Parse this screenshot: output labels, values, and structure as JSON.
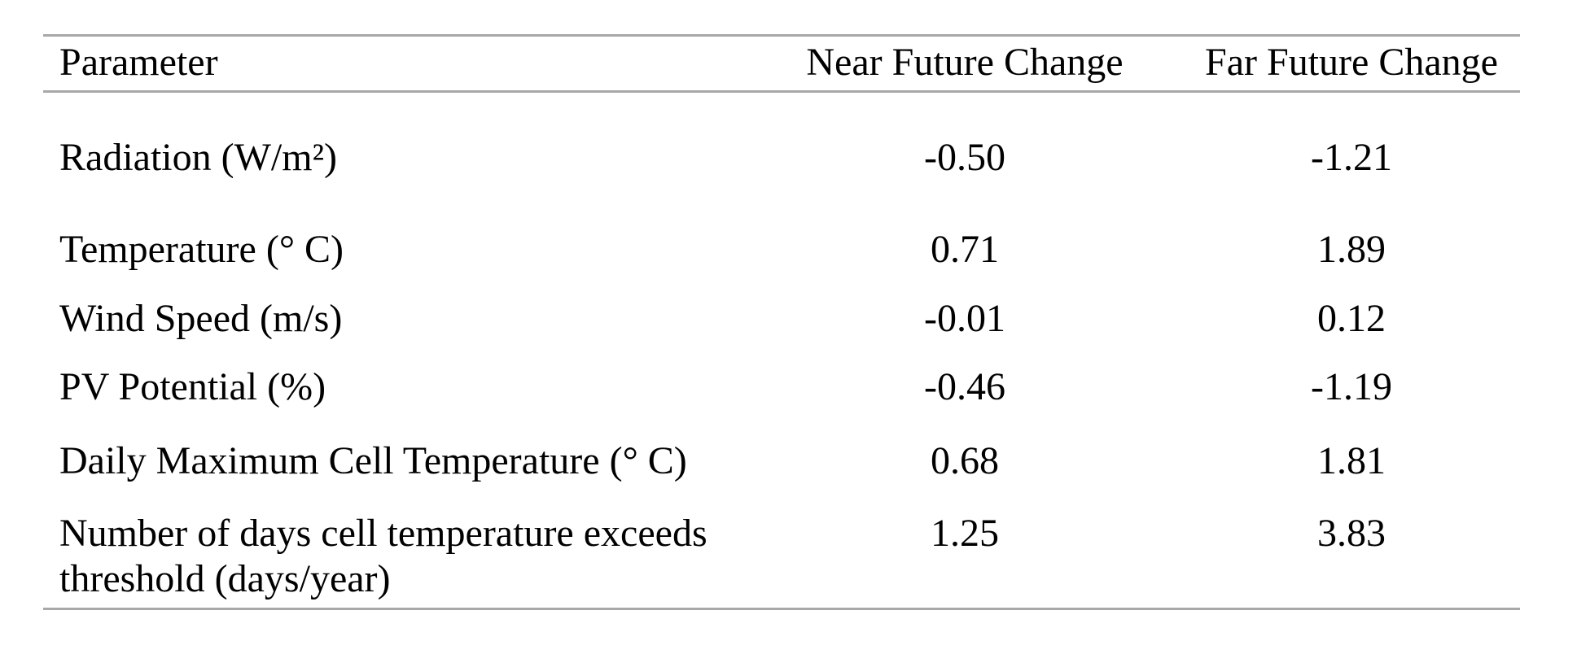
{
  "page": {
    "background_color": "#ffffff",
    "text_color": "#000000",
    "rule_color": "#a8a8a8"
  },
  "table": {
    "columns": [
      "Parameter",
      "Near Future Change",
      "Far Future Change"
    ],
    "rows": [
      {
        "parameter": "Radiation (W/m²)",
        "near_future_change": "-0.50",
        "far_future_change": "-1.21"
      },
      {
        "parameter": "Temperature (° C)",
        "near_future_change": "0.71",
        "far_future_change": "1.89"
      },
      {
        "parameter": "Wind Speed (m/s)",
        "near_future_change": "-0.01",
        "far_future_change": "0.12"
      },
      {
        "parameter": "PV Potential (%)",
        "near_future_change": "-0.46",
        "far_future_change": "-1.19"
      },
      {
        "parameter": "Daily Maximum Cell Temperature (° C)",
        "near_future_change": "0.68",
        "far_future_change": "1.81"
      },
      {
        "parameter": "Number of days cell temperature exceeds threshold (days/year)",
        "near_future_change": "1.25",
        "far_future_change": "3.83"
      }
    ]
  }
}
